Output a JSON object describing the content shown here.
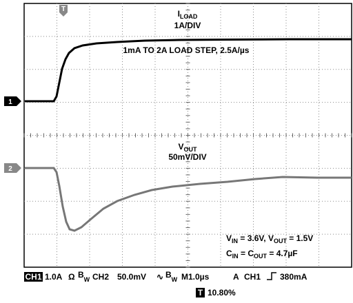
{
  "trigger_marker": "T",
  "traces": [
    {
      "label": "I",
      "label_sub": "LOAD",
      "scale": "1A/DIV",
      "marker": "1"
    },
    {
      "label": "V",
      "label_sub": "OUT",
      "scale": "50mV/DIV",
      "marker": "2"
    }
  ],
  "annotation": "1mA TO 2A LOAD STEP, 2.5A/µs",
  "conditions": [
    [
      {
        "t": "V"
      },
      {
        "s": "IN"
      },
      {
        "t": " = 3.6V, V"
      },
      {
        "s": "OUT"
      },
      {
        "t": " = 1.5V"
      }
    ],
    [
      {
        "t": "C"
      },
      {
        "s": "IN"
      },
      {
        "t": " = C"
      },
      {
        "s": "OUT"
      },
      {
        "t": " = 4.7µF"
      }
    ]
  ],
  "status": {
    "ch1": "CH1",
    "ch1_scale": "1.0A",
    "ch1_coupling": "Ω",
    "bw1": "B",
    "bw1_sub": "W",
    "ch2": "CH2",
    "ch2_scale": "50.0mV",
    "ch2_coupling": "∿",
    "bw2": "B",
    "bw2_sub": "W",
    "timebase": "M1.0µs",
    "trigger_mode": "A",
    "trigger_source": "CH1",
    "trigger_level": "380mA",
    "trigger_badge": "T",
    "trigger_position": "10.80%"
  }
}
